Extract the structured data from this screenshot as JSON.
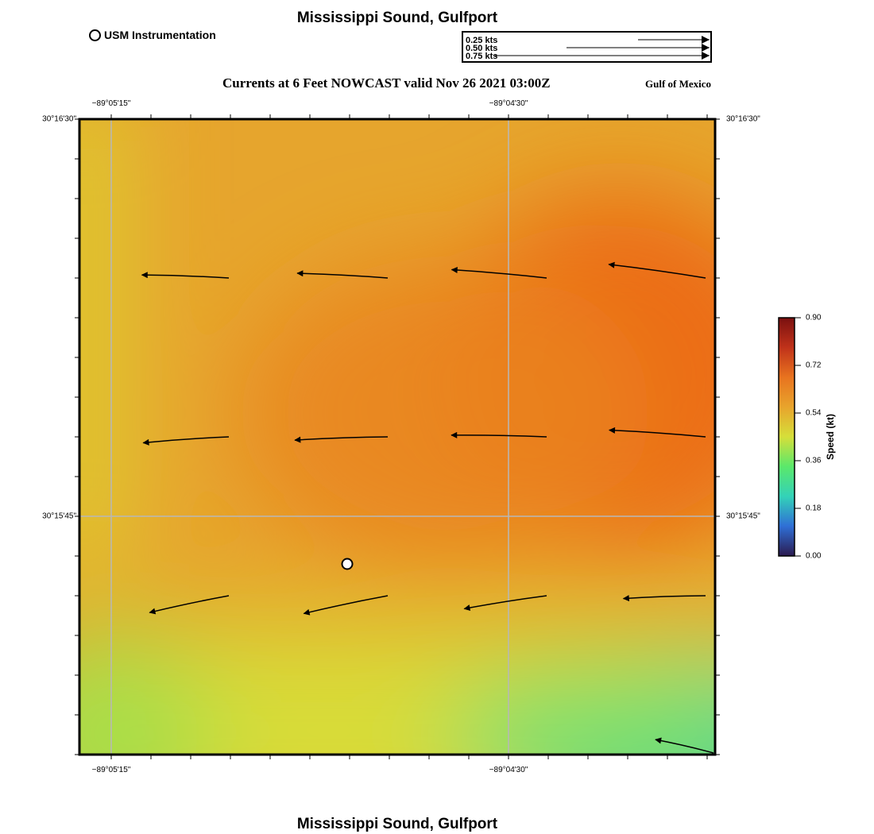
{
  "header": {
    "title": "Mississippi Sound, Gulfport",
    "subtitle": "Currents at 6 Feet NOWCAST valid Nov 26 2021 03:00Z",
    "region": "Gulf of Mexico"
  },
  "footer": {
    "title": "Mississippi Sound, Gulfport"
  },
  "station_legend": {
    "label": "USM Instrumentation",
    "marker": "white-circle"
  },
  "speed_key": [
    {
      "label": "0.25 kts",
      "speed": 0.25
    },
    {
      "label": "0.50 kts",
      "speed": 0.5
    },
    {
      "label": "0.75 kts",
      "speed": 0.75
    }
  ],
  "map": {
    "lon_labels": [
      "−89°05'15\"",
      "−89°04'30\""
    ],
    "lat_labels": [
      "30°16'30\"",
      "30°15'45\""
    ],
    "grid": true
  },
  "colorbar": {
    "label": "Speed (kt)",
    "min": 0.0,
    "max": 0.9,
    "ticks": [
      "0.90",
      "0.72",
      "0.54",
      "0.36",
      "0.18",
      "0.00"
    ],
    "colors": [
      "#2b1a4f",
      "#2f6fd6",
      "#33d2b8",
      "#5ae86b",
      "#d6df3a",
      "#e8a42c",
      "#e8731f",
      "#c0321a",
      "#7a1010"
    ]
  },
  "vectors": [
    {
      "speed": 0.63,
      "dir_deg": 272
    },
    {
      "speed": 0.66,
      "dir_deg": 273
    },
    {
      "speed": 0.7,
      "dir_deg": 275
    },
    {
      "speed": 0.72,
      "dir_deg": 278
    },
    {
      "speed": 0.62,
      "dir_deg": 266
    },
    {
      "speed": 0.68,
      "dir_deg": 268
    },
    {
      "speed": 0.7,
      "dir_deg": 271
    },
    {
      "speed": 0.71,
      "dir_deg": 274
    },
    {
      "speed": 0.58,
      "dir_deg": 258
    },
    {
      "speed": 0.62,
      "dir_deg": 258
    },
    {
      "speed": 0.6,
      "dir_deg": 261
    },
    {
      "speed": 0.59,
      "dir_deg": 268
    },
    {
      "speed": 0.4,
      "dir_deg": 283
    }
  ]
}
